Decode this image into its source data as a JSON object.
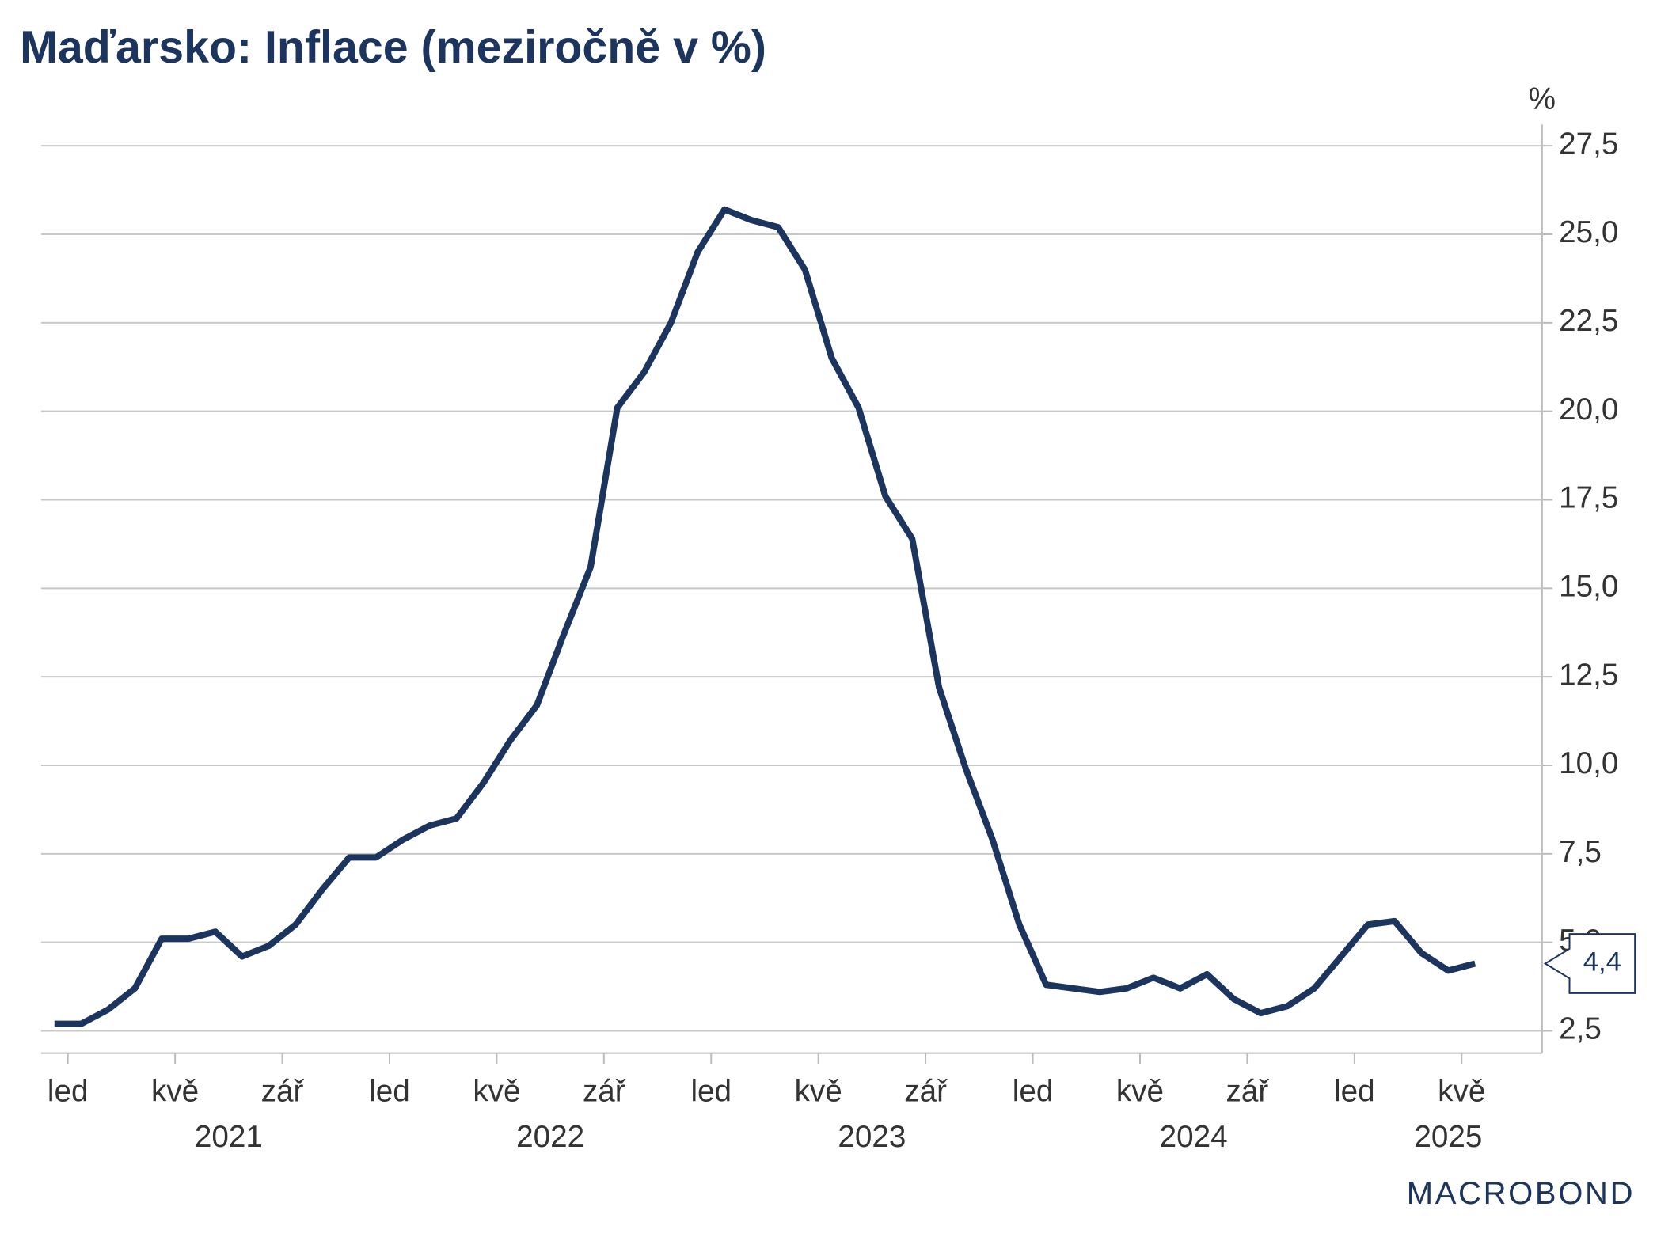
{
  "chart_data": {
    "type": "line",
    "title": "Maďarsko: Inflace (meziročně v %)",
    "y_unit": "%",
    "x": [
      "2020-12",
      "2021-01",
      "2021-02",
      "2021-03",
      "2021-04",
      "2021-05",
      "2021-06",
      "2021-07",
      "2021-08",
      "2021-09",
      "2021-10",
      "2021-11",
      "2021-12",
      "2022-01",
      "2022-02",
      "2022-03",
      "2022-04",
      "2022-05",
      "2022-06",
      "2022-07",
      "2022-08",
      "2022-09",
      "2022-10",
      "2022-11",
      "2022-12",
      "2023-01",
      "2023-02",
      "2023-03",
      "2023-04",
      "2023-05",
      "2023-06",
      "2023-07",
      "2023-08",
      "2023-09",
      "2023-10",
      "2023-11",
      "2023-12",
      "2024-01",
      "2024-02",
      "2024-03",
      "2024-04",
      "2024-05",
      "2024-06",
      "2024-07",
      "2024-08",
      "2024-09",
      "2024-10",
      "2024-11",
      "2024-12",
      "2025-01",
      "2025-02",
      "2025-03",
      "2025-04",
      "2025-05"
    ],
    "values": [
      2.7,
      2.7,
      3.1,
      3.7,
      5.1,
      5.1,
      5.3,
      4.6,
      4.9,
      5.5,
      6.5,
      7.4,
      7.4,
      7.9,
      8.3,
      8.5,
      9.5,
      10.7,
      11.7,
      13.7,
      15.6,
      20.1,
      21.1,
      22.5,
      24.5,
      25.7,
      25.4,
      25.2,
      24.0,
      21.5,
      20.1,
      17.6,
      16.4,
      12.2,
      9.9,
      7.9,
      5.5,
      3.8,
      3.7,
      3.6,
      3.7,
      4.0,
      3.7,
      4.1,
      3.4,
      3.0,
      3.2,
      3.7,
      4.6,
      5.5,
      5.6,
      4.7,
      4.2,
      4.4
    ],
    "value_labels": [
      null,
      null,
      null,
      null,
      null,
      null,
      null,
      null,
      null,
      null,
      null,
      null,
      null,
      null,
      null,
      null,
      null,
      null,
      null,
      null,
      null,
      null,
      null,
      null,
      null,
      null,
      null,
      null,
      null,
      null,
      null,
      null,
      null,
      null,
      null,
      null,
      null,
      null,
      null,
      null,
      null,
      null,
      null,
      null,
      null,
      null,
      null,
      null,
      null,
      null,
      null,
      null,
      null,
      "4,4"
    ],
    "color": "#1c355e",
    "xlim": [
      "2020-12",
      "2025-08"
    ],
    "xticks": [
      {
        "value": "2021-01",
        "label": "led"
      },
      {
        "value": "2021-05",
        "label": "kvě"
      },
      {
        "value": "2021-09",
        "label": "zář"
      },
      {
        "value": "2022-01",
        "label": "led"
      },
      {
        "value": "2022-05",
        "label": "kvě"
      },
      {
        "value": "2022-09",
        "label": "zář"
      },
      {
        "value": "2023-01",
        "label": "led"
      },
      {
        "value": "2023-05",
        "label": "kvě"
      },
      {
        "value": "2023-09",
        "label": "zář"
      },
      {
        "value": "2024-01",
        "label": "led"
      },
      {
        "value": "2024-05",
        "label": "kvě"
      },
      {
        "value": "2024-09",
        "label": "zář"
      },
      {
        "value": "2025-01",
        "label": "led"
      },
      {
        "value": "2025-05",
        "label": "kvě"
      }
    ],
    "year_labels": [
      "2021",
      "2022",
      "2023",
      "2024",
      "2025"
    ],
    "ylim": [
      1.87,
      28.1
    ],
    "yticks": [
      {
        "value": 2.5,
        "label": "2,5"
      },
      {
        "value": 5,
        "label": "5,0"
      },
      {
        "value": 7.5,
        "label": "7,5"
      },
      {
        "value": 10,
        "label": "10,0"
      },
      {
        "value": 12.5,
        "label": "12,5"
      },
      {
        "value": 15,
        "label": "15,0"
      },
      {
        "value": 17.5,
        "label": "17,5"
      },
      {
        "value": 20,
        "label": "20,0"
      },
      {
        "value": 22.5,
        "label": "22,5"
      },
      {
        "value": 25,
        "label": "25,0"
      },
      {
        "value": 27.5,
        "label": "27,5"
      }
    ],
    "grid": true,
    "source": "MACROBOND"
  }
}
